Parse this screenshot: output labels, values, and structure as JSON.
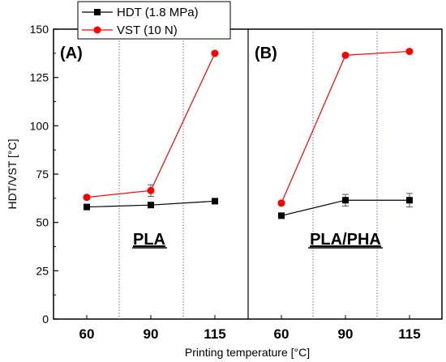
{
  "chart_data": {
    "type": "line",
    "xlabel": "Printing temperature [°C]",
    "ylabel": "HDT/VST [°C]",
    "ylim": [
      0,
      150
    ],
    "yticks": [
      0,
      25,
      50,
      75,
      100,
      125,
      150
    ],
    "grid": false,
    "legend_placement": "top-left",
    "panels": [
      {
        "panel_label": "(A)",
        "material": "PLA",
        "categories": [
          "60",
          "90",
          "115"
        ]
      },
      {
        "panel_label": "(B)",
        "material": "PLA/PHA",
        "categories": [
          "60",
          "90",
          "115"
        ]
      }
    ],
    "series": [
      {
        "name": "HDT (1.8 MPa)",
        "color": "#000000",
        "marker": "square",
        "panels": [
          {
            "values": [
              58,
              59,
              61
            ],
            "errors": [
              1,
              1,
              1
            ]
          },
          {
            "values": [
              53.5,
              61.5,
              61.5
            ],
            "errors": [
              1,
              3,
              3.5
            ]
          }
        ]
      },
      {
        "name": "VST (10 N)",
        "color": "#ff0000",
        "marker": "circle",
        "panels": [
          {
            "values": [
              63,
              66.5,
              137.5
            ],
            "errors": [
              1,
              3,
              0.5
            ]
          },
          {
            "values": [
              60,
              136.5,
              138.5
            ],
            "errors": [
              1,
              0.5,
              0.5
            ]
          }
        ]
      }
    ]
  }
}
